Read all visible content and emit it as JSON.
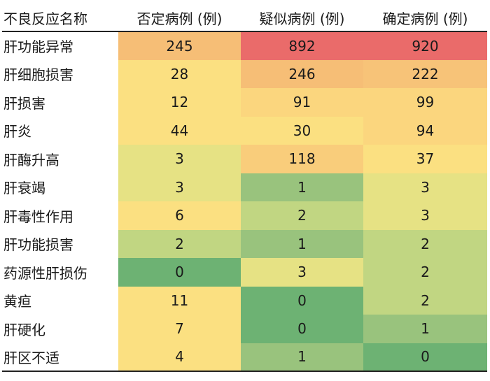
{
  "chart_data": {
    "type": "heatmap",
    "title": "",
    "columns": [
      "不良反应名称",
      "否定病例 (例)",
      "疑似病例 (例)",
      "确定病例 (例)"
    ],
    "rows": [
      {
        "name": "肝功能异常",
        "values": [
          245,
          892,
          920
        ]
      },
      {
        "name": "肝细胞损害",
        "values": [
          28,
          246,
          222
        ]
      },
      {
        "name": "肝损害",
        "values": [
          12,
          91,
          99
        ]
      },
      {
        "name": "肝炎",
        "values": [
          44,
          30,
          94
        ]
      },
      {
        "name": "肝酶升高",
        "values": [
          3,
          118,
          37
        ]
      },
      {
        "name": "肝衰竭",
        "values": [
          3,
          1,
          3
        ]
      },
      {
        "name": "肝毒性作用",
        "values": [
          6,
          2,
          3
        ]
      },
      {
        "name": "肝功能损害",
        "values": [
          2,
          1,
          2
        ]
      },
      {
        "name": "药源性肝损伤",
        "values": [
          0,
          3,
          2
        ]
      },
      {
        "name": "黄疸",
        "values": [
          11,
          0,
          2
        ]
      },
      {
        "name": "肝硬化",
        "values": [
          7,
          0,
          1
        ]
      },
      {
        "name": "肝区不适",
        "values": [
          4,
          1,
          0
        ]
      }
    ],
    "cell_colors": [
      [
        "#f6be76",
        "#ea6b6a",
        "#ea6b6a"
      ],
      [
        "#fbe081",
        "#f6be76",
        "#f7c378"
      ],
      [
        "#fbe081",
        "#fbd67e",
        "#fbd67e"
      ],
      [
        "#fbe081",
        "#fbe081",
        "#fbd67e"
      ],
      [
        "#e6e284",
        "#f9cd7b",
        "#fbe081"
      ],
      [
        "#e6e284",
        "#99c37d",
        "#e6e284"
      ],
      [
        "#fbe081",
        "#c1d682",
        "#e6e284"
      ],
      [
        "#c1d682",
        "#99c37d",
        "#c1d682"
      ],
      [
        "#6db273",
        "#e6e284",
        "#c1d682"
      ],
      [
        "#fbe081",
        "#6db273",
        "#c1d682"
      ],
      [
        "#fbe081",
        "#6db273",
        "#99c37d"
      ],
      [
        "#fbe081",
        "#99c37d",
        "#6db273"
      ]
    ]
  }
}
